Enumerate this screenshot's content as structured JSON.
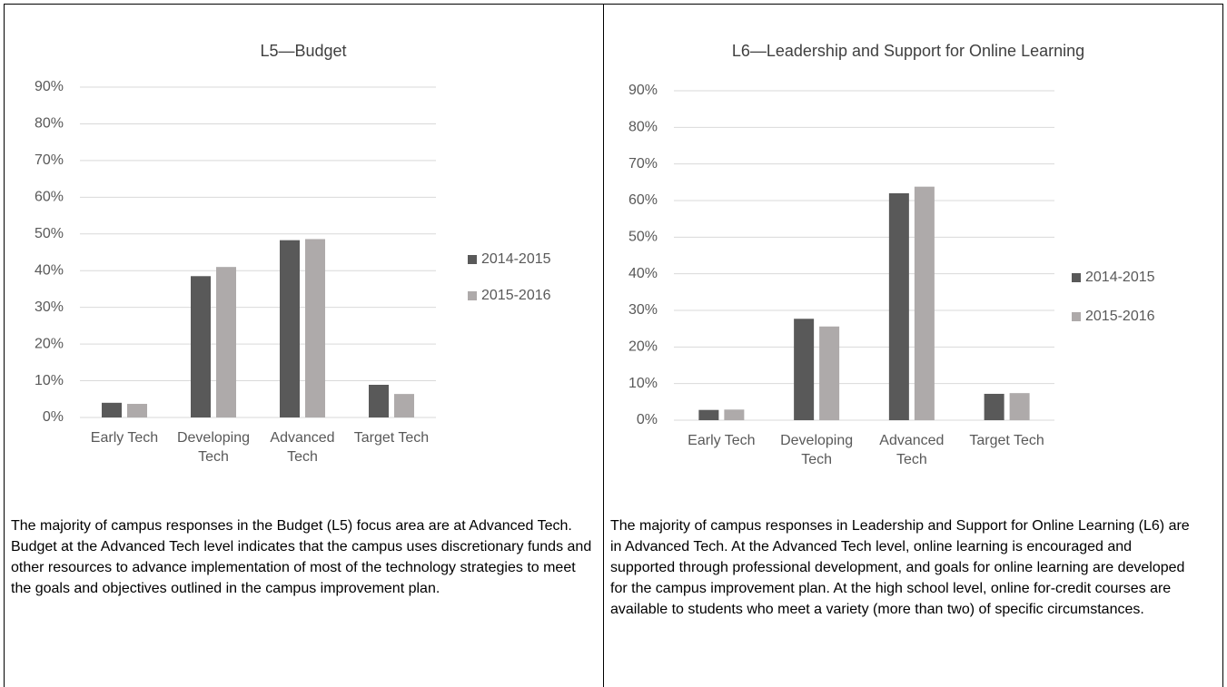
{
  "chart_data": [
    {
      "type": "bar",
      "title": "L5—Budget",
      "categories": [
        "Early Tech",
        "Developing Tech",
        "Advanced Tech",
        "Target Tech"
      ],
      "series": [
        {
          "name": "2014-2015",
          "color": "#595959",
          "values": [
            4,
            38.5,
            48.3,
            8.9
          ]
        },
        {
          "name": "2015-2016",
          "color": "#aeaaaa",
          "values": [
            3.7,
            41,
            48.6,
            6.4
          ]
        }
      ],
      "ylim": [
        0,
        90
      ],
      "yticks": [
        {
          "value": 0,
          "label": "0%"
        },
        {
          "value": 10,
          "label": "10%"
        },
        {
          "value": 20,
          "label": "20%"
        },
        {
          "value": 30,
          "label": "30%"
        },
        {
          "value": 40,
          "label": "40%"
        },
        {
          "value": 50,
          "label": "50%"
        },
        {
          "value": 60,
          "label": "60%"
        },
        {
          "value": 70,
          "label": "70%"
        },
        {
          "value": 80,
          "label": "80%"
        },
        {
          "value": 90,
          "label": "90%"
        }
      ],
      "grid": true,
      "legend": "right"
    },
    {
      "type": "bar",
      "title": "L6—Leadership and Support for Online Learning",
      "categories": [
        "Early Tech",
        "Developing Tech",
        "Advanced Tech",
        "Target Tech"
      ],
      "series": [
        {
          "name": "2014-2015",
          "color": "#595959",
          "values": [
            2.8,
            27.7,
            62,
            7.2
          ]
        },
        {
          "name": "2015-2016",
          "color": "#aeaaaa",
          "values": [
            2.9,
            25.6,
            63.8,
            7.4
          ]
        }
      ],
      "ylim": [
        0,
        90
      ],
      "yticks": [
        {
          "value": 0,
          "label": "0%"
        },
        {
          "value": 10,
          "label": "10%"
        },
        {
          "value": 20,
          "label": "20%"
        },
        {
          "value": 30,
          "label": "30%"
        },
        {
          "value": 40,
          "label": "40%"
        },
        {
          "value": 50,
          "label": "50%"
        },
        {
          "value": 60,
          "label": "60%"
        },
        {
          "value": 70,
          "label": "70%"
        },
        {
          "value": 80,
          "label": "80%"
        },
        {
          "value": 90,
          "label": "90%"
        }
      ],
      "grid": true,
      "legend": "right"
    }
  ],
  "paragraphs": [
    "The majority of campus responses in the Budget (L5) focus area are at Advanced Tech. Budget at the Advanced Tech level indicates that the campus uses discretionary funds and other resources to advance implementation of most of the technology strategies to meet the goals and objectives outlined in the campus improvement plan.",
    "The majority of campus responses in Leadership and Support for Online Learning (L6) are in Advanced Tech. At the Advanced Tech level, online learning is encouraged and supported through professional development, and goals for online learning are developed for the campus improvement plan. At the high school level, online for-credit courses are available to students who meet a variety (more than two) of specific circumstances."
  ]
}
